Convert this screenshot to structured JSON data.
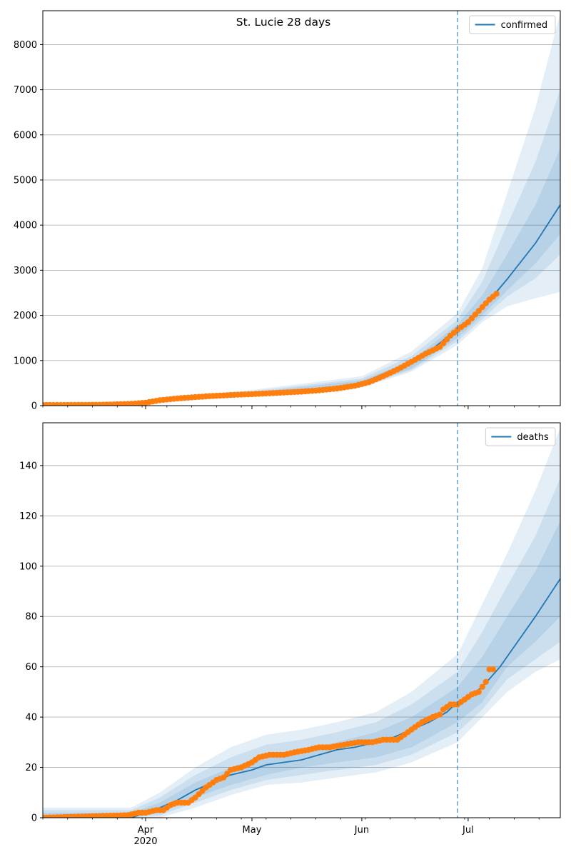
{
  "figure_title": "St. Lucie 28 days",
  "colors": {
    "model": "#1f77b4",
    "observed": "#ff7f0e",
    "band": "#1f77b4",
    "grid": "#b0b0b0",
    "forecast_marker": "#1f77b4"
  },
  "chart_data": [
    {
      "type": "line",
      "title": "St. Lucie 28 days",
      "xlabel": "",
      "ylabel": "",
      "x_range": [
        "2020-03-03",
        "2020-07-27"
      ],
      "ylim": [
        0,
        8750
      ],
      "yticks": [
        0,
        1000,
        2000,
        3000,
        4000,
        5000,
        6000,
        7000,
        8000
      ],
      "grid": "horizontal",
      "legend_position": "top-right",
      "forecast_start": "2020-06-28",
      "series": [
        {
          "name": "confirmed",
          "style": "line",
          "x": [
            "2020-03-03",
            "2020-03-15",
            "2020-03-25",
            "2020-04-01",
            "2020-04-10",
            "2020-04-20",
            "2020-05-01",
            "2020-05-10",
            "2020-05-20",
            "2020-06-01",
            "2020-06-10",
            "2020-06-20",
            "2020-06-28",
            "2020-07-05",
            "2020-07-12",
            "2020-07-20",
            "2020-07-27"
          ],
          "values": [
            15,
            15,
            30,
            70,
            150,
            210,
            260,
            290,
            360,
            500,
            800,
            1200,
            1700,
            2150,
            2800,
            3600,
            4450
          ]
        },
        {
          "style": "markers",
          "x": [
            "2020-03-03",
            "2020-03-10",
            "2020-03-20",
            "2020-03-28",
            "2020-04-01",
            "2020-04-05",
            "2020-04-10",
            "2020-04-15",
            "2020-04-20",
            "2020-04-25",
            "2020-05-01",
            "2020-05-05",
            "2020-05-10",
            "2020-05-15",
            "2020-05-20",
            "2020-05-25",
            "2020-05-30",
            "2020-06-03",
            "2020-06-07",
            "2020-06-11",
            "2020-06-15",
            "2020-06-19",
            "2020-06-23",
            "2020-06-26",
            "2020-06-28",
            "2020-07-01",
            "2020-07-04",
            "2020-07-07",
            "2020-07-09"
          ],
          "values": [
            15,
            15,
            20,
            40,
            65,
            120,
            160,
            190,
            215,
            235,
            255,
            270,
            290,
            310,
            340,
            380,
            440,
            520,
            650,
            800,
            970,
            1150,
            1300,
            1550,
            1680,
            1850,
            2100,
            2350,
            2480
          ]
        }
      ],
      "bands": [
        {
          "x": [
            "2020-03-03",
            "2020-04-01",
            "2020-05-01",
            "2020-06-01",
            "2020-06-15",
            "2020-06-28",
            "2020-07-05",
            "2020-07-12",
            "2020-07-20",
            "2020-07-27"
          ],
          "lower": [
            0,
            50,
            200,
            400,
            750,
            1350,
            1850,
            2200,
            2380,
            2520
          ],
          "upper": [
            40,
            110,
            350,
            650,
            1200,
            2050,
            3050,
            4700,
            6600,
            8700
          ]
        },
        {
          "x": [
            "2020-03-03",
            "2020-04-01",
            "2020-05-01",
            "2020-06-01",
            "2020-06-15",
            "2020-06-28",
            "2020-07-05",
            "2020-07-12",
            "2020-07-20",
            "2020-07-27"
          ],
          "lower": [
            5,
            55,
            215,
            420,
            790,
            1430,
            1920,
            2420,
            2820,
            3350
          ],
          "upper": [
            30,
            95,
            320,
            600,
            1100,
            1900,
            2750,
            4000,
            5400,
            7000
          ]
        },
        {
          "x": [
            "2020-03-03",
            "2020-04-01",
            "2020-05-01",
            "2020-06-01",
            "2020-06-15",
            "2020-06-28",
            "2020-07-05",
            "2020-07-12",
            "2020-07-20",
            "2020-07-27"
          ],
          "lower": [
            10,
            60,
            230,
            450,
            820,
            1500,
            2000,
            2550,
            3150,
            3800
          ],
          "upper": [
            22,
            85,
            295,
            560,
            1000,
            1800,
            2450,
            3350,
            4450,
            5700
          ]
        }
      ],
      "legend": [
        "confirmed"
      ]
    },
    {
      "type": "line",
      "title": "",
      "xlabel": "",
      "ylabel": "",
      "x_range": [
        "2020-03-03",
        "2020-07-27"
      ],
      "ylim": [
        0,
        157
      ],
      "yticks": [
        0,
        20,
        40,
        60,
        80,
        100,
        120,
        140
      ],
      "xticks": [
        {
          "date": "2020-04-01",
          "label": "Apr",
          "sub": "2020"
        },
        {
          "date": "2020-05-01",
          "label": "May",
          "sub": ""
        },
        {
          "date": "2020-06-01",
          "label": "Jun",
          "sub": ""
        },
        {
          "date": "2020-07-01",
          "label": "Jul",
          "sub": ""
        }
      ],
      "grid": "horizontal",
      "legend_position": "top-right",
      "forecast_start": "2020-06-28",
      "series": [
        {
          "name": "deaths",
          "style": "line",
          "x": [
            "2020-03-03",
            "2020-03-28",
            "2020-04-01",
            "2020-04-05",
            "2020-04-10",
            "2020-04-15",
            "2020-04-20",
            "2020-04-25",
            "2020-05-01",
            "2020-05-05",
            "2020-05-10",
            "2020-05-15",
            "2020-05-20",
            "2020-05-25",
            "2020-05-30",
            "2020-06-05",
            "2020-06-10",
            "2020-06-15",
            "2020-06-20",
            "2020-06-25",
            "2020-06-28",
            "2020-07-01",
            "2020-07-05",
            "2020-07-10",
            "2020-07-15",
            "2020-07-20",
            "2020-07-27"
          ],
          "values": [
            0,
            0,
            2,
            4,
            7,
            11,
            14,
            17,
            19,
            21,
            22,
            23,
            25,
            27,
            28,
            30,
            32,
            35,
            38,
            42,
            46,
            48,
            52,
            60,
            70,
            80,
            95
          ]
        },
        {
          "style": "markers",
          "x": [
            "2020-03-03",
            "2020-03-27",
            "2020-03-30",
            "2020-04-01",
            "2020-04-04",
            "2020-04-06",
            "2020-04-08",
            "2020-04-10",
            "2020-04-13",
            "2020-04-15",
            "2020-04-18",
            "2020-04-21",
            "2020-04-23",
            "2020-04-25",
            "2020-04-28",
            "2020-05-01",
            "2020-05-03",
            "2020-05-06",
            "2020-05-10",
            "2020-05-13",
            "2020-05-17",
            "2020-05-20",
            "2020-05-23",
            "2020-05-27",
            "2020-05-31",
            "2020-06-04",
            "2020-06-07",
            "2020-06-09",
            "2020-06-11",
            "2020-06-13",
            "2020-06-15",
            "2020-06-18",
            "2020-06-21",
            "2020-06-23",
            "2020-06-24",
            "2020-06-26",
            "2020-06-28",
            "2020-06-30",
            "2020-07-02",
            "2020-07-04",
            "2020-07-06",
            "2020-07-07",
            "2020-07-08"
          ],
          "values": [
            0,
            1,
            2,
            2,
            3,
            3,
            5,
            6,
            6,
            8,
            12,
            15,
            16,
            19,
            20,
            22,
            24,
            25,
            25,
            26,
            27,
            28,
            28,
            29,
            30,
            30,
            31,
            31,
            31,
            33,
            35,
            38,
            40,
            41,
            43,
            45,
            45,
            47,
            49,
            50,
            54,
            59,
            59
          ]
        }
      ],
      "bands": [
        {
          "x": [
            "2020-03-03",
            "2020-03-28",
            "2020-04-05",
            "2020-04-15",
            "2020-04-25",
            "2020-05-05",
            "2020-05-15",
            "2020-05-25",
            "2020-06-05",
            "2020-06-15",
            "2020-06-28",
            "2020-07-05",
            "2020-07-12",
            "2020-07-20",
            "2020-07-27"
          ],
          "lower": [
            0,
            0,
            0,
            4,
            9,
            13,
            14,
            16,
            18,
            22,
            30,
            40,
            50,
            58,
            63
          ],
          "upper": [
            4,
            4,
            10,
            20,
            28,
            33,
            35,
            38,
            42,
            50,
            65,
            85,
            105,
            130,
            155
          ]
        },
        {
          "x": [
            "2020-03-03",
            "2020-03-28",
            "2020-04-05",
            "2020-04-15",
            "2020-04-25",
            "2020-05-05",
            "2020-05-15",
            "2020-05-25",
            "2020-06-05",
            "2020-06-15",
            "2020-06-28",
            "2020-07-05",
            "2020-07-12",
            "2020-07-20",
            "2020-07-27"
          ],
          "lower": [
            0,
            0,
            1,
            6,
            11,
            15,
            17,
            19,
            21,
            25,
            34,
            43,
            55,
            63,
            70
          ],
          "upper": [
            3,
            3,
            8,
            17,
            24,
            29,
            31,
            34,
            38,
            45,
            58,
            74,
            92,
            112,
            135
          ]
        },
        {
          "x": [
            "2020-03-03",
            "2020-03-28",
            "2020-04-05",
            "2020-04-15",
            "2020-04-25",
            "2020-05-05",
            "2020-05-15",
            "2020-05-25",
            "2020-06-05",
            "2020-06-15",
            "2020-06-28",
            "2020-07-05",
            "2020-07-12",
            "2020-07-20",
            "2020-07-27"
          ],
          "lower": [
            0,
            0,
            2,
            8,
            13,
            17,
            20,
            22,
            24,
            28,
            38,
            46,
            60,
            70,
            80
          ],
          "upper": [
            2,
            2,
            6,
            14,
            20,
            25,
            27,
            30,
            34,
            40,
            52,
            64,
            80,
            98,
            118
          ]
        }
      ],
      "legend": [
        "deaths"
      ]
    }
  ]
}
